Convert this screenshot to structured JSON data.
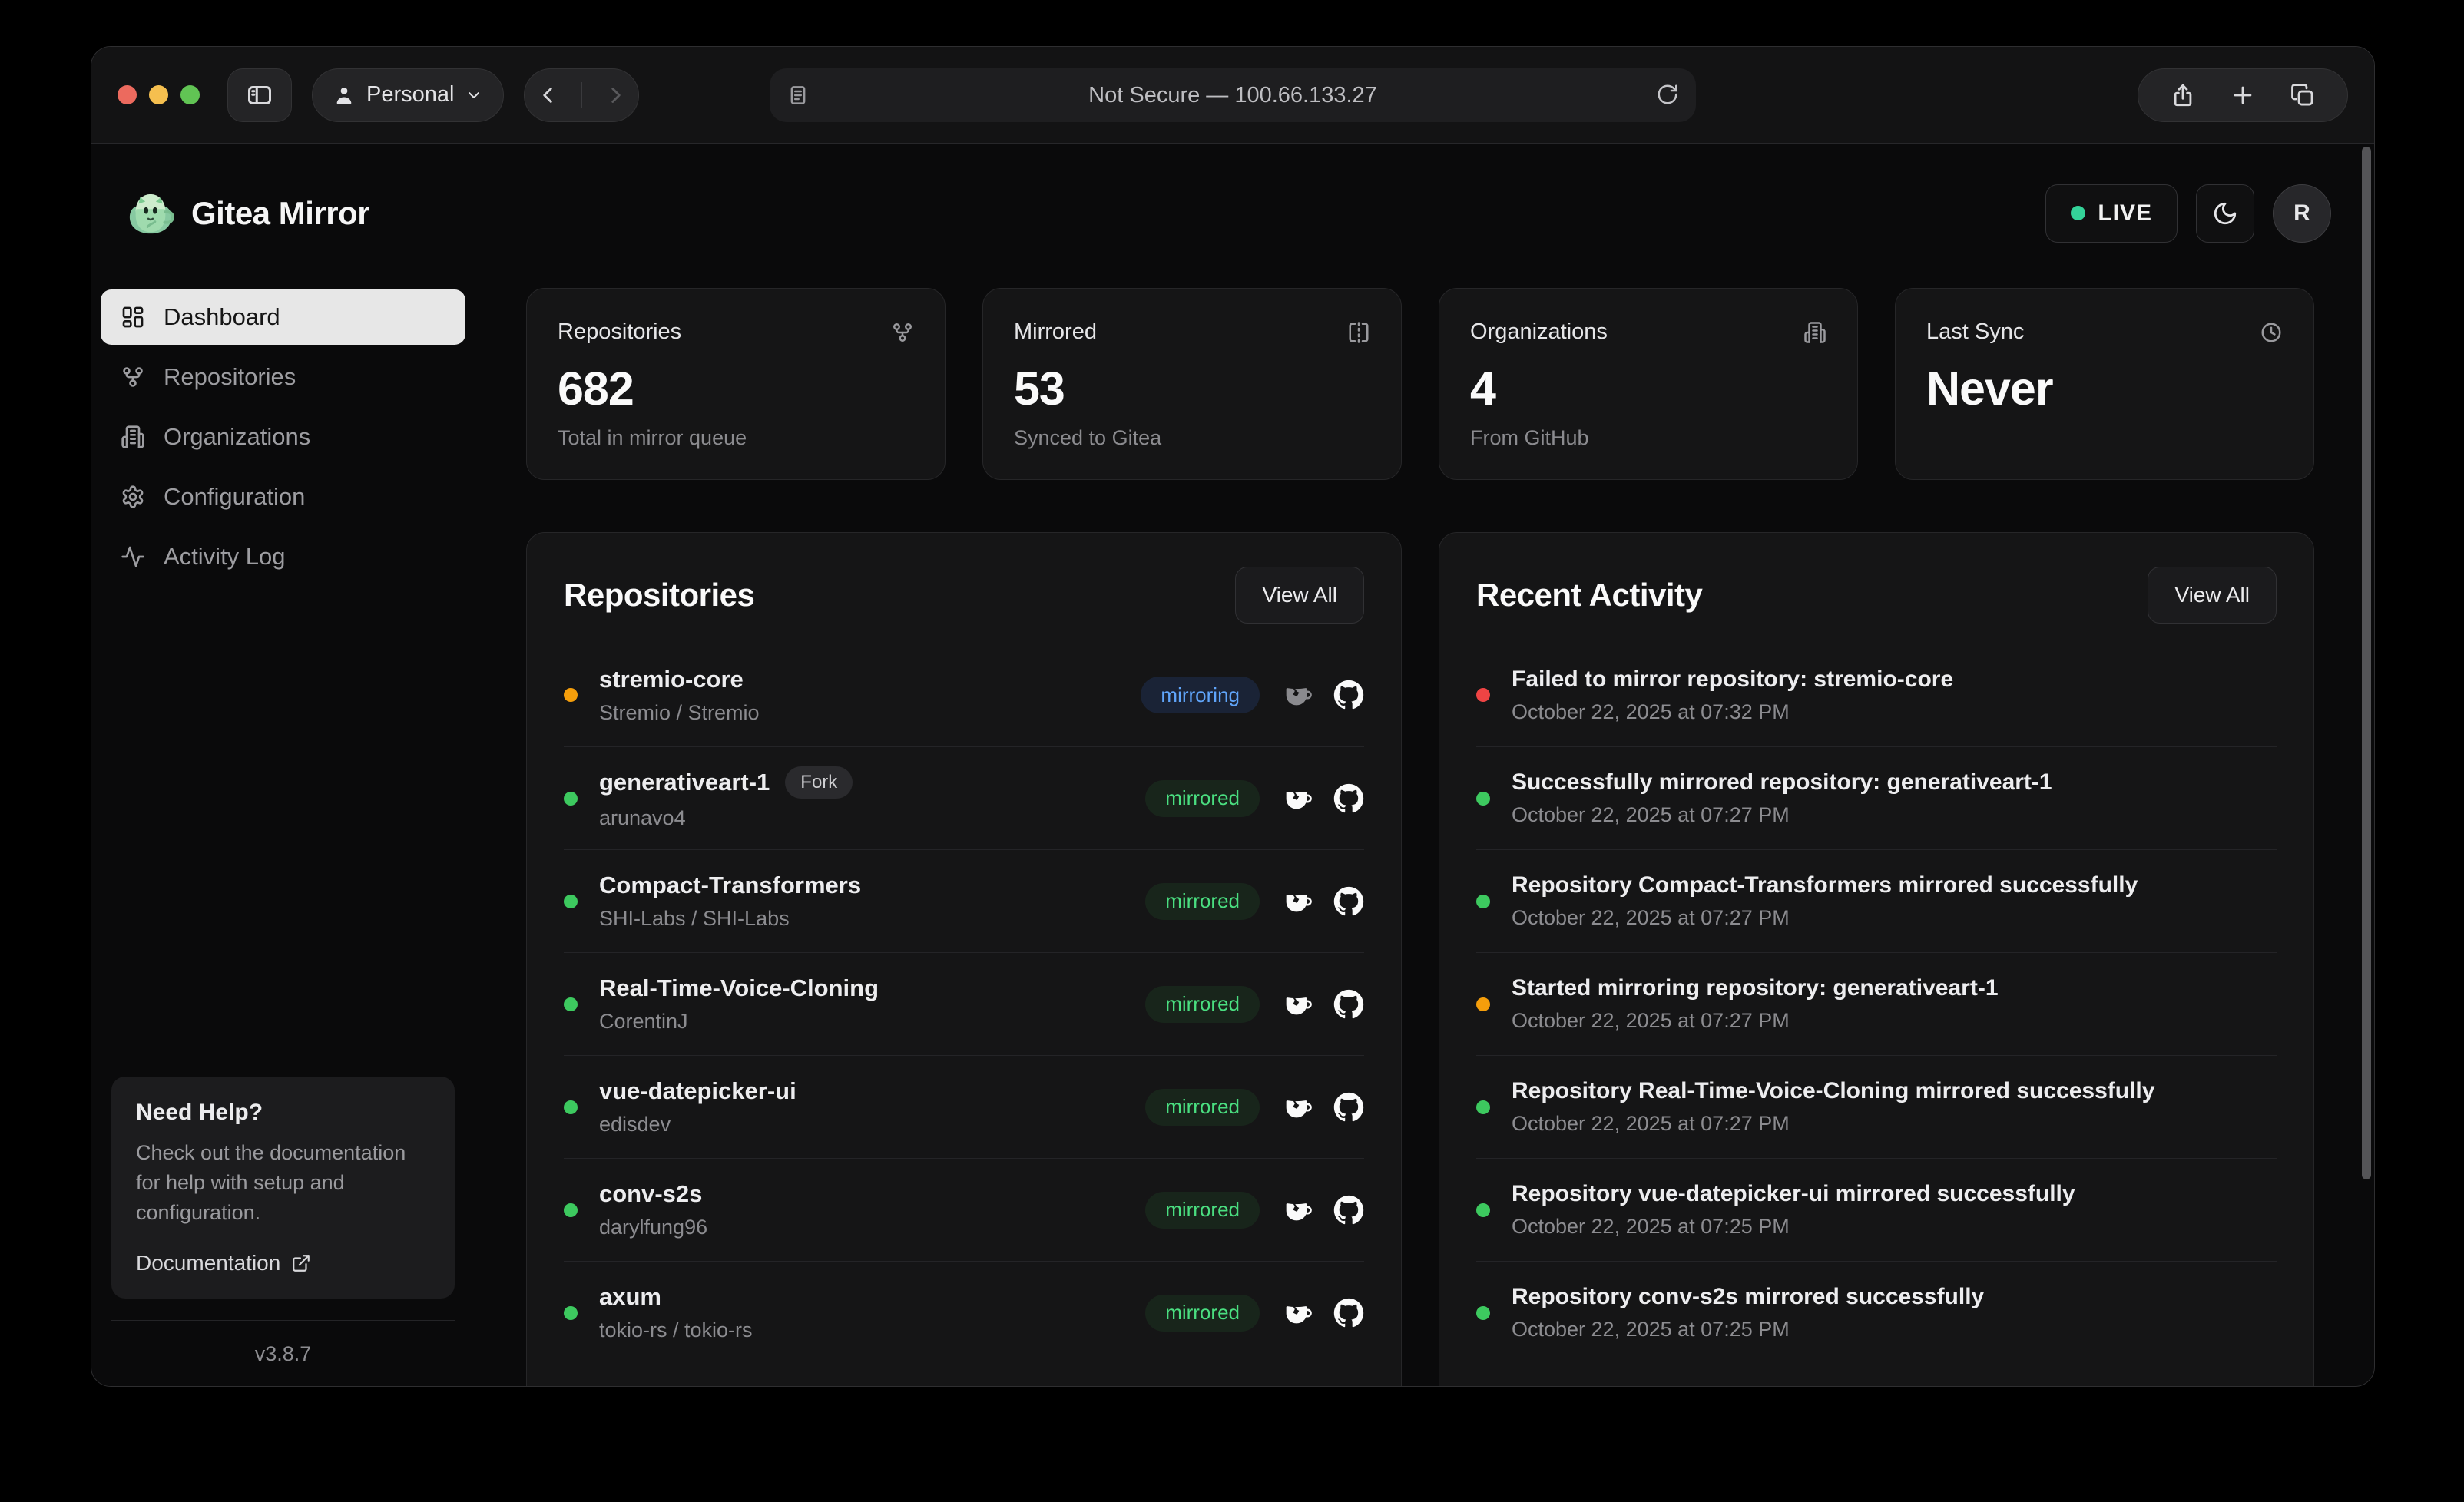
{
  "browser": {
    "profile_label": "Personal",
    "url_text": "Not Secure — 100.66.133.27"
  },
  "header": {
    "app_name": "Gitea Mirror",
    "live_label": "LIVE",
    "avatar_initial": "R"
  },
  "sidebar": {
    "items": [
      {
        "label": "Dashboard",
        "icon": "layout-dashboard",
        "active": true
      },
      {
        "label": "Repositories",
        "icon": "git-fork",
        "active": false
      },
      {
        "label": "Organizations",
        "icon": "building",
        "active": false
      },
      {
        "label": "Configuration",
        "icon": "gear",
        "active": false
      },
      {
        "label": "Activity Log",
        "icon": "activity",
        "active": false
      }
    ],
    "help": {
      "title": "Need Help?",
      "body": "Check out the documentation for help with setup and configuration.",
      "link_label": "Documentation"
    },
    "version": "v3.8.7"
  },
  "stats": [
    {
      "title": "Repositories",
      "value": "682",
      "subtitle": "Total in mirror queue",
      "icon": "git-fork"
    },
    {
      "title": "Mirrored",
      "value": "53",
      "subtitle": "Synced to Gitea",
      "icon": "mirror"
    },
    {
      "title": "Organizations",
      "value": "4",
      "subtitle": "From GitHub",
      "icon": "building"
    },
    {
      "title": "Last Sync",
      "value": "Never",
      "subtitle": "",
      "icon": "clock"
    }
  ],
  "repositories_panel": {
    "title": "Repositories",
    "view_all_label": "View All",
    "rows": [
      {
        "name": "stremio-core",
        "owner": "Stremio / Stremio",
        "status": "mirroring",
        "dot": "orange",
        "fork": false
      },
      {
        "name": "generativeart-1",
        "owner": "arunavo4",
        "status": "mirrored",
        "dot": "green",
        "fork": true,
        "fork_label": "Fork"
      },
      {
        "name": "Compact-Transformers",
        "owner": "SHI-Labs / SHI-Labs",
        "status": "mirrored",
        "dot": "green",
        "fork": false
      },
      {
        "name": "Real-Time-Voice-Cloning",
        "owner": "CorentinJ",
        "status": "mirrored",
        "dot": "green",
        "fork": false
      },
      {
        "name": "vue-datepicker-ui",
        "owner": "edisdev",
        "status": "mirrored",
        "dot": "green",
        "fork": false
      },
      {
        "name": "conv-s2s",
        "owner": "darylfung96",
        "status": "mirrored",
        "dot": "green",
        "fork": false
      },
      {
        "name": "axum",
        "owner": "tokio-rs / tokio-rs",
        "status": "mirrored",
        "dot": "green",
        "fork": false
      }
    ]
  },
  "activity_panel": {
    "title": "Recent Activity",
    "view_all_label": "View All",
    "rows": [
      {
        "message": "Failed to mirror repository: stremio-core",
        "time": "October 22, 2025 at 07:32 PM",
        "dot": "red"
      },
      {
        "message": "Successfully mirrored repository: generativeart-1",
        "time": "October 22, 2025 at 07:27 PM",
        "dot": "green"
      },
      {
        "message": "Repository Compact-Transformers mirrored successfully",
        "time": "October 22, 2025 at 07:27 PM",
        "dot": "green"
      },
      {
        "message": "Started mirroring repository: generativeart-1",
        "time": "October 22, 2025 at 07:27 PM",
        "dot": "orange"
      },
      {
        "message": "Repository Real-Time-Voice-Cloning mirrored successfully",
        "time": "October 22, 2025 at 07:27 PM",
        "dot": "green"
      },
      {
        "message": "Repository vue-datepicker-ui mirrored successfully",
        "time": "October 22, 2025 at 07:25 PM",
        "dot": "green"
      },
      {
        "message": "Repository conv-s2s mirrored successfully",
        "time": "October 22, 2025 at 07:25 PM",
        "dot": "green"
      }
    ]
  },
  "colors": {
    "dot_green": "#3dc95f",
    "dot_orange": "#f59e0b",
    "dot_red": "#ef4444",
    "live_dot": "#34d399",
    "badge_mirrored_text": "#4ade80",
    "badge_mirroring_text": "#60a5fa"
  }
}
